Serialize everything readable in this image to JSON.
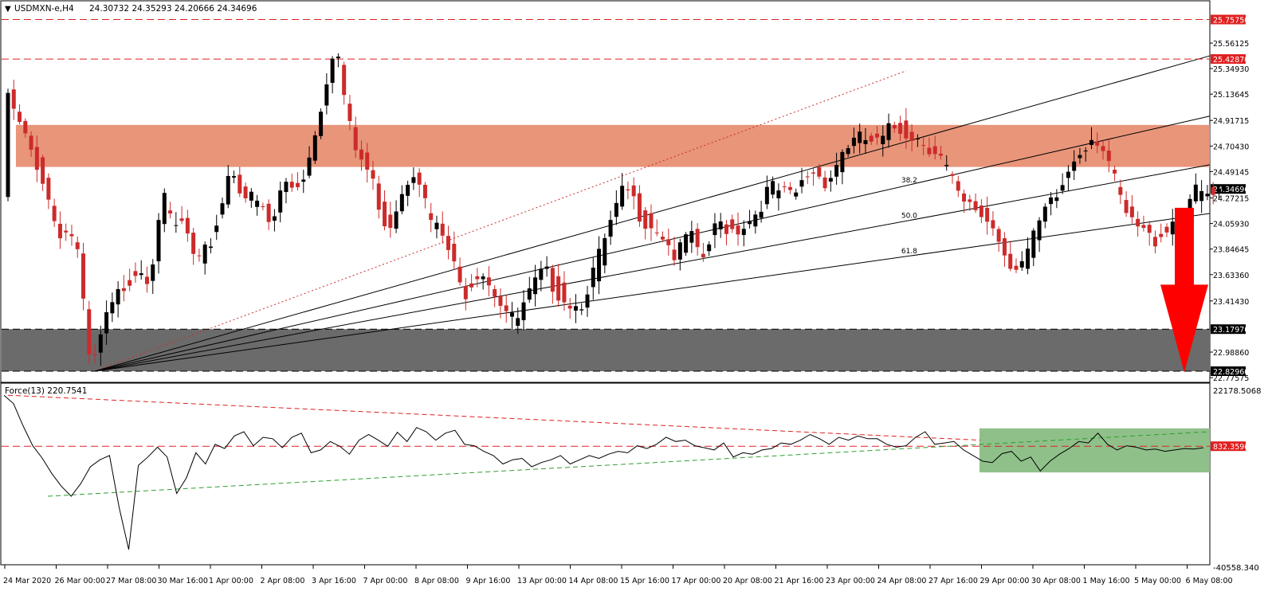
{
  "header": {
    "symbol": "USDMXN-e,H4",
    "ohlc": "24.30732 24.35293 24.20666 24.34696"
  },
  "indicator": {
    "title": "Force(13) 220.7541",
    "level_label": "832.3596",
    "axis_top": "22178.5068",
    "axis_bottom": "-40558.340"
  },
  "colors": {
    "bull": "#000000",
    "bear": "#cc2b2b",
    "resistance_zone": "#e8957a",
    "support_zone": "#6b6b6b",
    "dashed_levels": "#e02020",
    "arrow": "#ff0000",
    "force_zone": "#8fc08a",
    "force_trend_up": "#2e9e2e",
    "force_trend_down": "#e02020"
  },
  "chart_data": [
    {
      "type": "candlestick",
      "symbol": "USDMXN-e",
      "timeframe": "H4",
      "y_ticks": [
        "25.56125",
        "25.34930",
        "25.13645",
        "24.91715",
        "24.70430",
        "24.49145",
        "24.27215",
        "24.05930",
        "23.84645",
        "23.63360",
        "23.41430",
        "22.98860",
        "22.77575"
      ],
      "ylim": [
        22.72,
        25.82
      ],
      "x_ticks": [
        "24 Mar 2020",
        "26 Mar 00:00",
        "27 Mar 08:00",
        "30 Mar 16:00",
        "1 Apr 00:00",
        "2 Apr 08:00",
        "3 Apr 16:00",
        "7 Apr 00:00",
        "8 Apr 08:00",
        "9 Apr 16:00",
        "13 Apr 00:00",
        "14 Apr 08:00",
        "15 Apr 16:00",
        "17 Apr 00:00",
        "20 Apr 08:00",
        "21 Apr 16:00",
        "23 Apr 00:00",
        "24 Apr 08:00",
        "27 Apr 16:00",
        "29 Apr 00:00",
        "30 Apr 08:00",
        "1 May 16:00",
        "5 May 00:00",
        "6 May 08:00"
      ],
      "levels": [
        {
          "value": 25.7575,
          "label": "25.75750"
        },
        {
          "value": 25.4287,
          "label": "25.42870"
        },
        {
          "value": 23.1797,
          "label": "23.17970"
        },
        {
          "value": 22.8296,
          "label": "22.82960"
        }
      ],
      "current_price": {
        "value": 24.34696,
        "label": "24.34696"
      },
      "zones": [
        {
          "name": "resistance",
          "from": 24.53,
          "to": 24.88
        },
        {
          "name": "support",
          "from": 22.8296,
          "to": 23.1797
        }
      ],
      "fibonacci_fan": {
        "origin": {
          "bar": 15,
          "price": 22.83
        },
        "apex": {
          "bar": 155,
          "price": 25.33
        },
        "levels": [
          "38.2",
          "50.0",
          "61.8"
        ]
      },
      "annotation": "bearish arrow toward 22.82960",
      "anchors": [
        [
          0,
          25.2
        ],
        [
          3,
          24.85
        ],
        [
          6,
          24.55
        ],
        [
          9,
          24.05
        ],
        [
          12,
          24.0
        ],
        [
          13,
          23.7
        ],
        [
          14,
          23.1
        ],
        [
          15,
          22.85
        ],
        [
          17,
          23.25
        ],
        [
          20,
          23.55
        ],
        [
          23,
          23.75
        ],
        [
          25,
          23.65
        ],
        [
          27,
          24.35
        ],
        [
          29,
          24.05
        ],
        [
          31,
          24.1
        ],
        [
          33,
          23.7
        ],
        [
          36,
          24.0
        ],
        [
          39,
          24.6
        ],
        [
          41,
          24.35
        ],
        [
          44,
          24.25
        ],
        [
          46,
          24.05
        ],
        [
          48,
          24.45
        ],
        [
          50,
          24.4
        ],
        [
          52,
          24.55
        ],
        [
          55,
          25.2
        ],
        [
          57,
          25.65
        ],
        [
          58,
          25.3
        ],
        [
          60,
          24.75
        ],
        [
          63,
          24.5
        ],
        [
          66,
          24.05
        ],
        [
          69,
          24.45
        ],
        [
          71,
          24.6
        ],
        [
          73,
          24.15
        ],
        [
          76,
          23.95
        ],
        [
          79,
          23.5
        ],
        [
          82,
          23.75
        ],
        [
          85,
          23.5
        ],
        [
          88,
          23.25
        ],
        [
          91,
          23.55
        ],
        [
          93,
          23.7
        ],
        [
          96,
          23.5
        ],
        [
          99,
          23.4
        ],
        [
          102,
          23.75
        ],
        [
          105,
          24.15
        ],
        [
          107,
          24.4
        ],
        [
          110,
          24.15
        ],
        [
          113,
          24.05
        ],
        [
          116,
          23.8
        ],
        [
          118,
          24.05
        ],
        [
          120,
          23.75
        ],
        [
          123,
          24.1
        ],
        [
          126,
          24.05
        ],
        [
          129,
          24.15
        ],
        [
          132,
          24.4
        ],
        [
          134,
          24.35
        ],
        [
          136,
          24.3
        ],
        [
          139,
          24.55
        ],
        [
          142,
          24.45
        ],
        [
          145,
          24.75
        ],
        [
          148,
          24.8
        ],
        [
          151,
          24.75
        ],
        [
          153,
          24.9
        ],
        [
          155,
          24.88
        ],
        [
          158,
          24.8
        ],
        [
          161,
          24.7
        ],
        [
          163,
          24.5
        ],
        [
          165,
          24.25
        ],
        [
          168,
          24.2
        ],
        [
          171,
          24.05
        ],
        [
          173,
          23.8
        ],
        [
          175,
          23.75
        ],
        [
          177,
          23.9
        ],
        [
          179,
          24.15
        ],
        [
          182,
          24.35
        ],
        [
          184,
          24.6
        ],
        [
          186,
          24.75
        ],
        [
          188,
          24.85
        ],
        [
          190,
          24.7
        ],
        [
          192,
          24.35
        ],
        [
          194,
          24.1
        ],
        [
          196,
          24.05
        ],
        [
          198,
          23.95
        ],
        [
          200,
          24.05
        ],
        [
          203,
          24.2
        ],
        [
          205,
          24.35
        ],
        [
          208,
          24.32
        ]
      ]
    },
    {
      "type": "line",
      "name": "Force(13)",
      "ylim": [
        -40558.34,
        22178.5068
      ],
      "level": 832.3596,
      "values": [
        19000,
        16000,
        8000,
        1000,
        -3500,
        -9000,
        -13500,
        -17000,
        -12500,
        -6500,
        -4000,
        -2500,
        -21000,
        -36000,
        -6000,
        -3000,
        500,
        -3000,
        -16000,
        -10500,
        -1500,
        -5500,
        1500,
        0,
        4500,
        6000,
        1000,
        4000,
        3500,
        300,
        4000,
        5500,
        -1500,
        -500,
        2500,
        800,
        -2000,
        3000,
        5000,
        3000,
        800,
        5800,
        2500,
        7500,
        6000,
        3000,
        5500,
        6500,
        1500,
        1000,
        -1000,
        -2500,
        -5500,
        -4000,
        -3500,
        -6500,
        -5000,
        -4000,
        -2500,
        -5500,
        -4000,
        -2500,
        -3500,
        -2000,
        -1000,
        -1500,
        1000,
        0,
        1500,
        4000,
        2500,
        3000,
        1000,
        300,
        -500,
        2000,
        -3000,
        -1500,
        -2000,
        -500,
        0,
        2000,
        1500,
        3000,
        5000,
        3500,
        1500,
        4000,
        3000,
        4500,
        3500,
        3500,
        1500,
        500,
        1000,
        4000,
        6000,
        1500,
        2000,
        2500,
        -500,
        -2500,
        -4500,
        -5000,
        -1800,
        -1000,
        -4500,
        -3000,
        -8000,
        -4500,
        -2000,
        0,
        2500,
        2000,
        5500,
        1500,
        -500,
        1000,
        500,
        -500,
        -200,
        -1000,
        -500,
        0,
        -200,
        300
      ],
      "trendlines": [
        "rising support (green, dashed)",
        "falling resistance (red, dashed)"
      ]
    }
  ]
}
